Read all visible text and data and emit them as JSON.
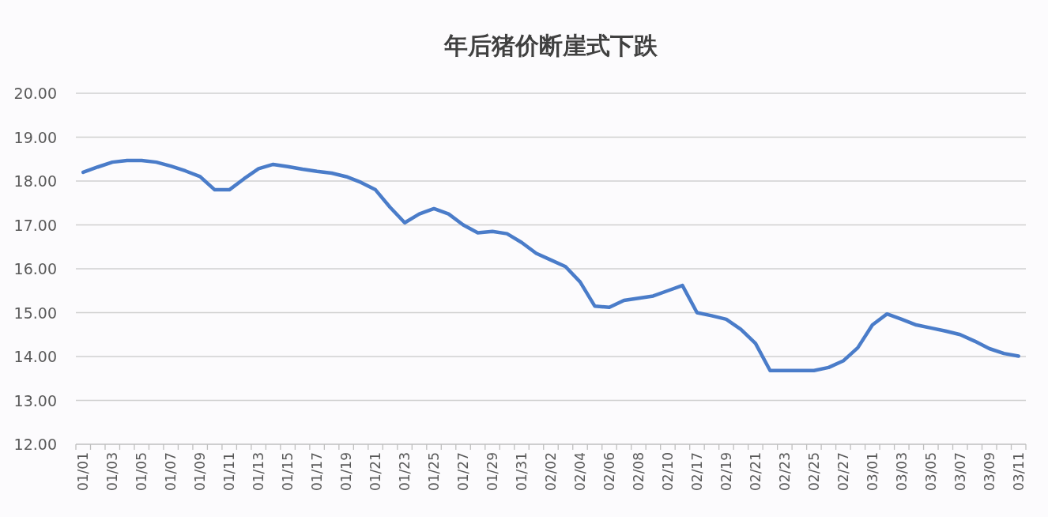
{
  "chart_data": {
    "type": "line",
    "title": "年后猪价断崖式下跌",
    "categories": [
      "01/01",
      null,
      "01/03",
      null,
      "01/05",
      null,
      "01/07",
      null,
      "01/09",
      null,
      "01/11",
      null,
      "01/13",
      null,
      "01/15",
      null,
      "01/17",
      null,
      "01/19",
      null,
      "01/21",
      null,
      "01/23",
      null,
      "01/25",
      null,
      "01/27",
      null,
      "01/29",
      null,
      "01/31",
      null,
      "02/02",
      null,
      "02/04",
      null,
      "02/06",
      null,
      "02/08",
      null,
      "02/10",
      null,
      "02/17",
      null,
      "02/19",
      null,
      "02/21",
      null,
      "02/23",
      null,
      "02/25",
      null,
      "02/27",
      null,
      "03/01",
      null,
      "03/03",
      null,
      "03/05",
      null,
      "03/07",
      null,
      "03/09",
      null,
      "03/11"
    ],
    "values": [
      18.2,
      18.32,
      18.43,
      18.47,
      18.47,
      18.43,
      18.34,
      18.23,
      18.1,
      17.8,
      17.8,
      18.05,
      18.28,
      18.38,
      18.33,
      18.27,
      18.22,
      18.18,
      18.1,
      17.97,
      17.8,
      17.4,
      17.05,
      17.25,
      17.37,
      17.25,
      17.0,
      16.82,
      16.85,
      16.8,
      16.6,
      16.35,
      16.2,
      16.05,
      15.7,
      15.15,
      15.12,
      15.28,
      15.33,
      15.38,
      15.5,
      15.62,
      15.0,
      14.93,
      14.85,
      14.62,
      14.3,
      13.68,
      13.68,
      13.68,
      13.68,
      13.75,
      13.9,
      14.2,
      14.72,
      14.97,
      14.85,
      14.72,
      14.65,
      14.58,
      14.5,
      14.35,
      14.18,
      14.07,
      14.01
    ],
    "color": "#4a7cc9",
    "ylim": [
      12,
      20
    ],
    "yticks": [
      {
        "value": 12,
        "label": "12.00"
      },
      {
        "value": 13,
        "label": "13.00"
      },
      {
        "value": 14,
        "label": "14.00"
      },
      {
        "value": 15,
        "label": "15.00"
      },
      {
        "value": 16,
        "label": "16.00"
      },
      {
        "value": 17,
        "label": "17.00"
      },
      {
        "value": 18,
        "label": "18.00"
      },
      {
        "value": 19,
        "label": "19.00"
      },
      {
        "value": 20,
        "label": "20.00"
      }
    ],
    "grid": "y"
  }
}
